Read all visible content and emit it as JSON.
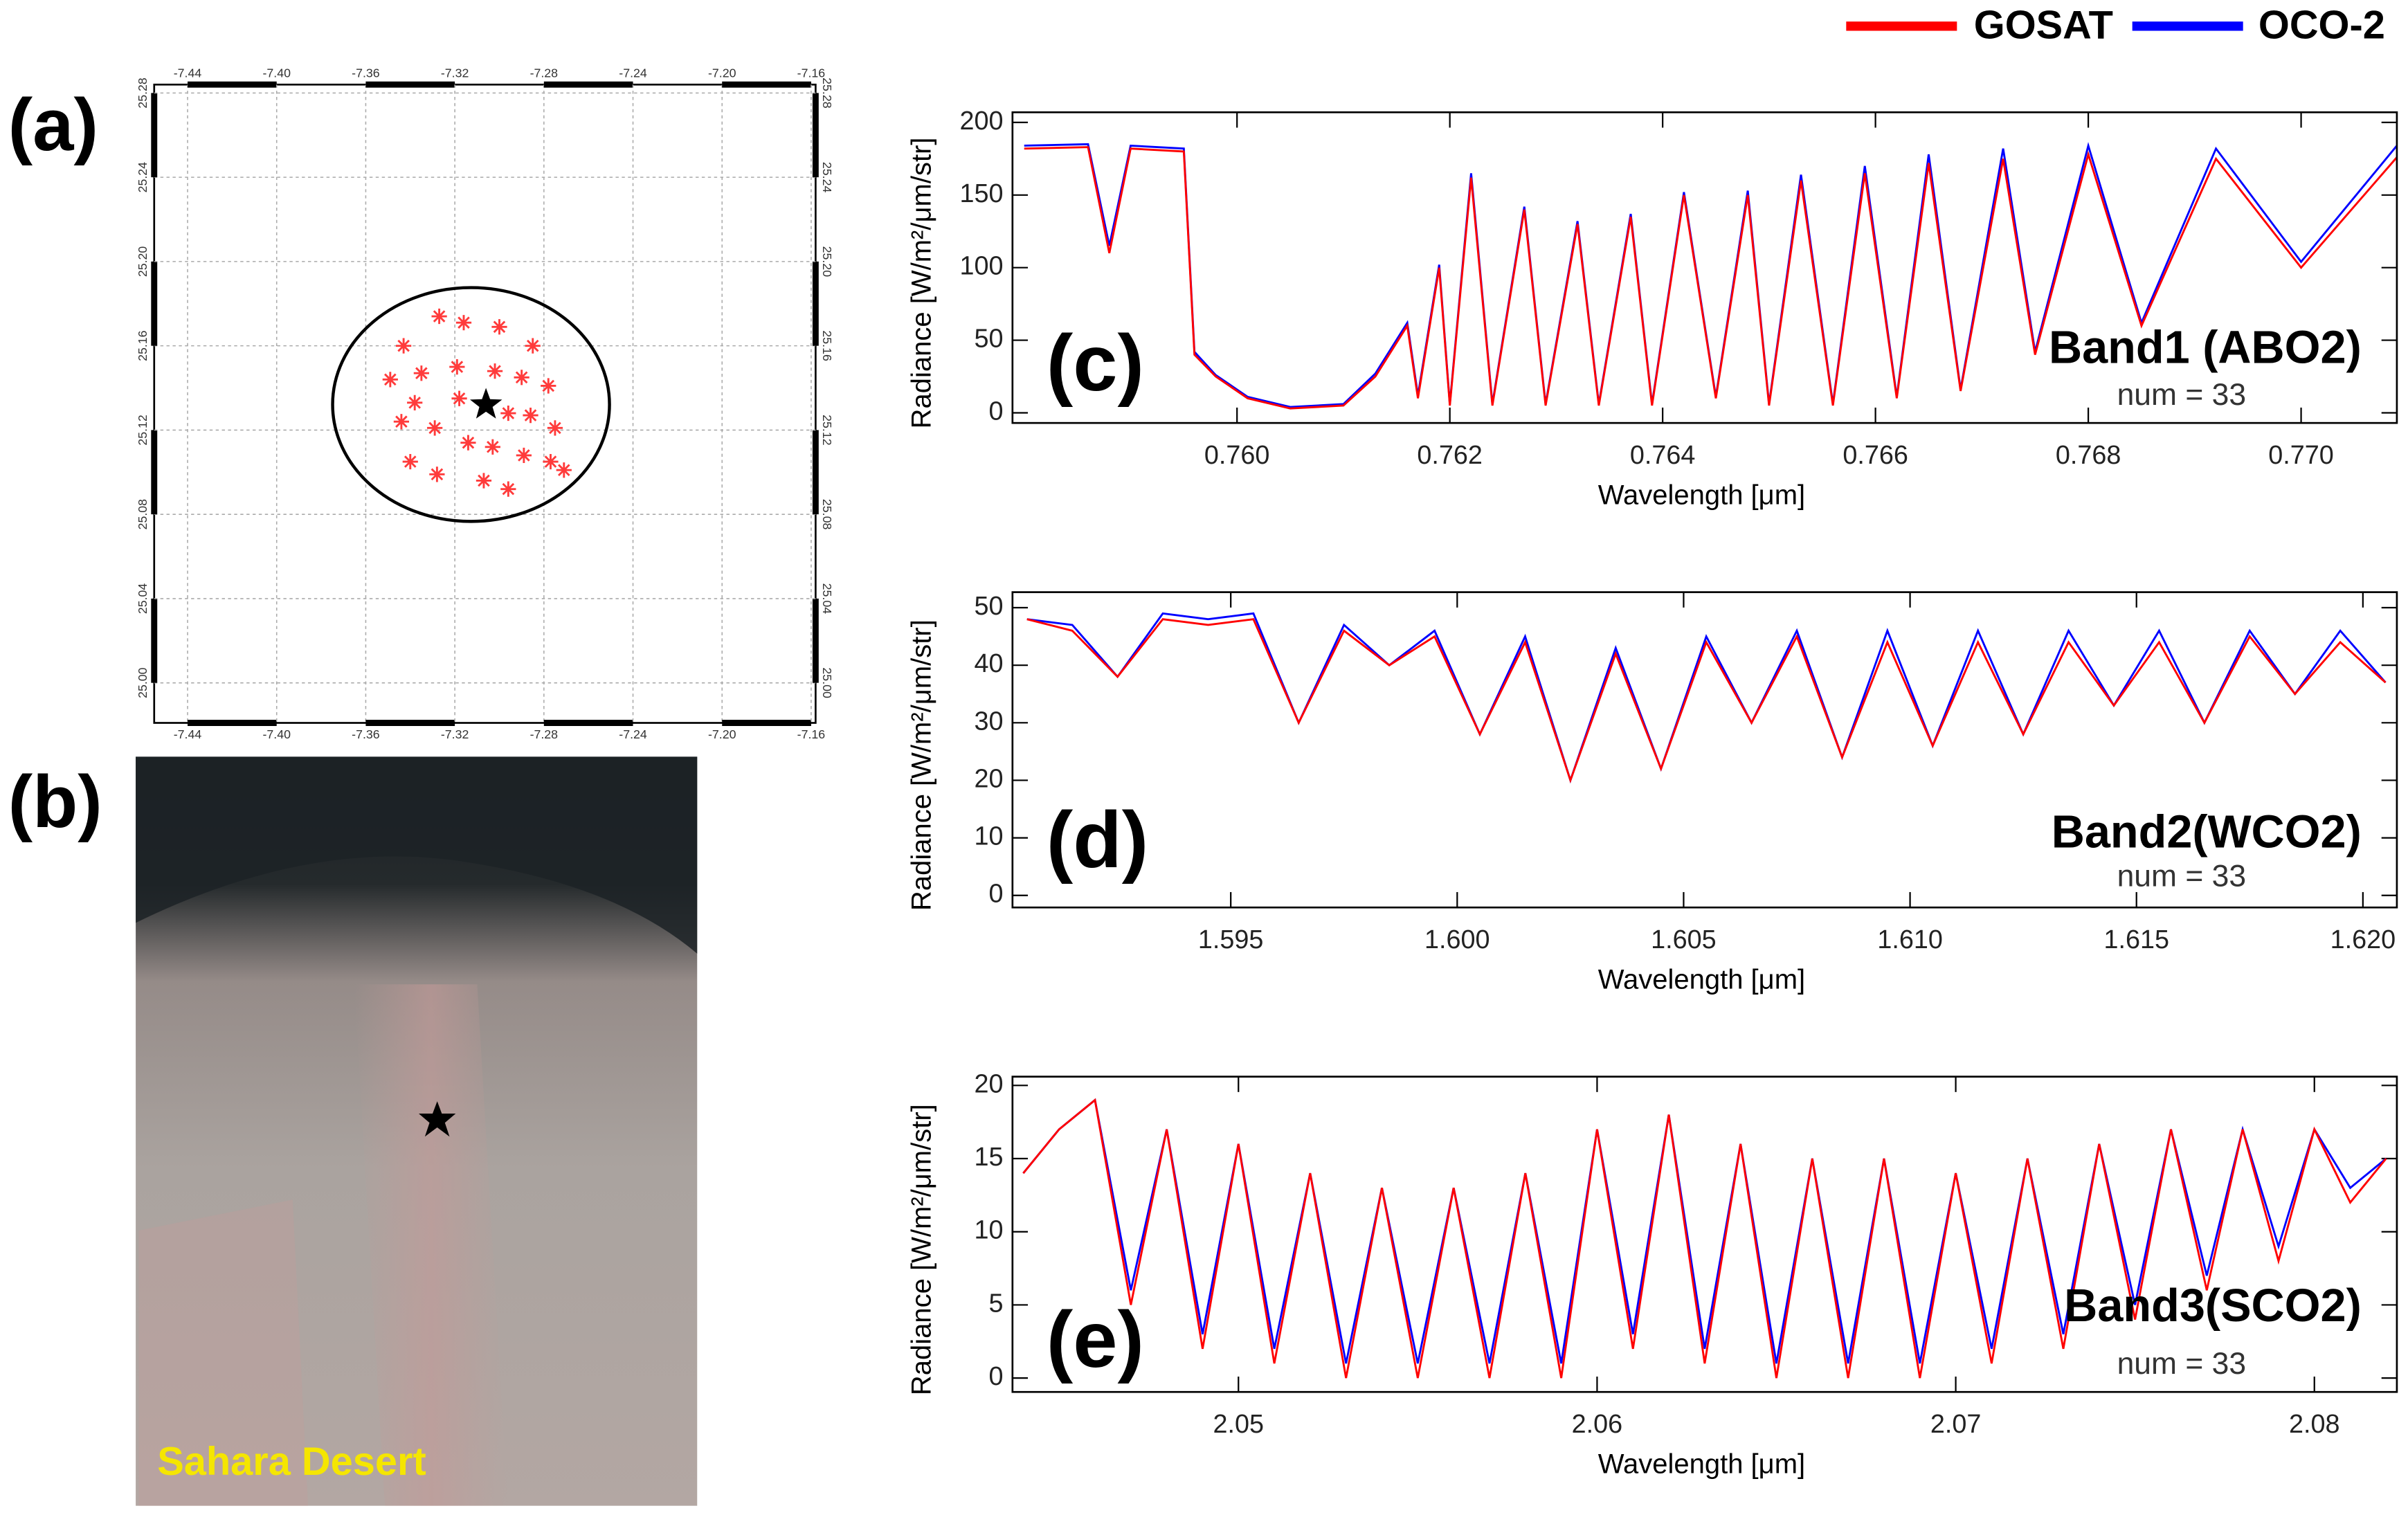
{
  "chart_data": [
    {
      "type": "scatter",
      "label": "(a)",
      "grid": true,
      "xlim": [
        -7.455,
        -7.158
      ],
      "ylim": [
        24.981,
        25.284
      ],
      "xticks": [
        -7.44,
        {
          "value": -7.4,
          "label": "-7.40"
        },
        -7.36,
        -7.32,
        -7.28,
        -7.24,
        {
          "value": -7.2,
          "label": "-7.20"
        },
        -7.16
      ],
      "yticks": [
        {
          "value": 25,
          "label": "25.00"
        },
        25.04,
        25.08,
        25.12,
        25.16,
        {
          "value": 25.2,
          "label": "25.20"
        },
        25.24,
        25.28
      ],
      "series": [
        {
          "color": "#ff3b3b",
          "marker": "asterisk",
          "x": [
            -7.343,
            -7.327,
            -7.316,
            -7.3,
            -7.285,
            -7.349,
            -7.335,
            -7.319,
            -7.302,
            -7.29,
            -7.278,
            -7.338,
            -7.318,
            -7.296,
            -7.286,
            -7.275,
            -7.344,
            -7.329,
            -7.314,
            -7.303,
            -7.289,
            -7.277,
            -7.34,
            -7.328,
            -7.307,
            -7.296,
            -7.271
          ],
          "y": [
            25.16,
            25.174,
            25.171,
            25.169,
            25.16,
            25.144,
            25.147,
            25.15,
            25.148,
            25.145,
            25.141,
            25.133,
            25.135,
            25.128,
            25.127,
            25.121,
            25.124,
            25.121,
            25.114,
            25.112,
            25.108,
            25.105,
            25.105,
            25.099,
            25.096,
            25.092,
            25.101
          ]
        },
        {
          "color": "#000000",
          "marker": "star",
          "x": [
            -7.306
          ],
          "y": [
            25.132
          ]
        }
      ]
    },
    {
      "type": "line",
      "label": "(c)",
      "annotation": "Band1 (ABO2)",
      "note": "num = 33",
      "xlabel": "Wavelength [μm]",
      "ylabel": "Radiance [W/m²/μm/str]",
      "xlim": [
        0.75789,
        0.7709
      ],
      "ylim": [
        -7,
        207
      ],
      "xticks": [
        {
          "value": 0.76,
          "label": "0.760"
        },
        0.762,
        0.764,
        0.766,
        0.768,
        {
          "value": 0.77,
          "label": "0.770"
        }
      ],
      "yticks": [
        0,
        50,
        100,
        150,
        200
      ],
      "x": [
        0.758,
        0.7586,
        0.7588,
        0.759,
        0.7595,
        0.7596,
        0.7598,
        0.7601,
        0.7605,
        0.761,
        0.7613,
        0.7616,
        0.7617,
        0.7619,
        0.762,
        0.7622,
        0.7624,
        0.7627,
        0.7629,
        0.7632,
        0.7634,
        0.7637,
        0.7639,
        0.7642,
        0.7645,
        0.7648,
        0.765,
        0.7653,
        0.7656,
        0.7659,
        0.7662,
        0.7665,
        0.7668,
        0.7672,
        0.7675,
        0.768,
        0.7685,
        0.7692,
        0.77,
        0.7709
      ],
      "series": [
        {
          "name": "GOSAT",
          "color": "#ff0000",
          "values": [
            182,
            183,
            110,
            182,
            180,
            40,
            25,
            10,
            3,
            5,
            25,
            60,
            10,
            100,
            5,
            162,
            5,
            140,
            5,
            130,
            5,
            135,
            5,
            150,
            10,
            150,
            5,
            160,
            5,
            165,
            10,
            172,
            15,
            175,
            40,
            178,
            60,
            175,
            100,
            176
          ]
        },
        {
          "name": "OCO-2",
          "color": "#0000ff",
          "values": [
            184,
            185,
            115,
            184,
            182,
            42,
            26,
            11,
            4,
            6,
            27,
            62,
            12,
            102,
            6,
            165,
            6,
            142,
            6,
            132,
            6,
            137,
            6,
            152,
            11,
            153,
            6,
            164,
            6,
            170,
            11,
            178,
            16,
            182,
            42,
            184,
            62,
            182,
            104,
            184
          ]
        }
      ]
    },
    {
      "type": "line",
      "label": "(d)",
      "annotation": "Band2(WCO2)",
      "note": "num = 33",
      "xlabel": "Wavelength [μm]",
      "ylabel": "Radiance [W/m²/μm/str]",
      "xlim": [
        1.59018,
        1.62075
      ],
      "ylim": [
        -2.1,
        52.7
      ],
      "xticks": [
        1.595,
        {
          "value": 1.6,
          "label": "1.600"
        },
        1.605,
        {
          "value": 1.61,
          "label": "1.610"
        },
        1.615,
        {
          "value": 1.62,
          "label": "1.620"
        }
      ],
      "yticks": [
        0,
        10,
        20,
        30,
        40,
        50
      ],
      "x": [
        1.5905,
        1.5915,
        1.5925,
        1.5935,
        1.5945,
        1.5955,
        1.5965,
        1.5975,
        1.5985,
        1.5995,
        1.6005,
        1.6015,
        1.6025,
        1.6035,
        1.6045,
        1.6055,
        1.6065,
        1.6075,
        1.6085,
        1.6095,
        1.6105,
        1.6115,
        1.6125,
        1.6135,
        1.6145,
        1.6155,
        1.6165,
        1.6175,
        1.6185,
        1.6195,
        1.6205
      ],
      "series": [
        {
          "color": "#ff0000",
          "values": [
            48,
            46,
            38,
            48,
            47,
            48,
            30,
            46,
            40,
            45,
            28,
            44,
            20,
            42,
            22,
            44,
            30,
            45,
            24,
            44,
            26,
            44,
            28,
            44,
            33,
            44,
            30,
            45,
            35,
            44,
            37
          ]
        },
        {
          "color": "#0000ff",
          "values": [
            48,
            47,
            38,
            49,
            48,
            49,
            30,
            47,
            40,
            46,
            28,
            45,
            20,
            43,
            22,
            45,
            30,
            46,
            24,
            46,
            26,
            46,
            28,
            46,
            33,
            46,
            30,
            46,
            35,
            46,
            37
          ]
        }
      ]
    },
    {
      "type": "line",
      "label": "(e)",
      "annotation": "Band3(SCO2)",
      "note": "num = 33",
      "xlabel": "Wavelength [μm]",
      "ylabel": "Radiance [W/m²/μm/str]",
      "xlim": [
        2.0437,
        2.0823
      ],
      "ylim": [
        -0.95,
        20.6
      ],
      "xticks": [
        2.05,
        2.06,
        2.07,
        2.08
      ],
      "yticks": [
        0,
        5,
        10,
        15,
        20
      ],
      "x": [
        2.044,
        2.045,
        2.046,
        2.047,
        2.048,
        2.049,
        2.05,
        2.051,
        2.052,
        2.053,
        2.054,
        2.055,
        2.056,
        2.057,
        2.058,
        2.059,
        2.06,
        2.061,
        2.062,
        2.063,
        2.064,
        2.065,
        2.066,
        2.067,
        2.068,
        2.069,
        2.07,
        2.071,
        2.072,
        2.073,
        2.074,
        2.075,
        2.076,
        2.077,
        2.078,
        2.079,
        2.08,
        2.081,
        2.082
      ],
      "series": [
        {
          "color": "#ff0000",
          "values": [
            14,
            17,
            19,
            5,
            17,
            2,
            16,
            1,
            14,
            0,
            13,
            0,
            13,
            0,
            14,
            0,
            17,
            2,
            18,
            1,
            16,
            0,
            15,
            0,
            15,
            0,
            14,
            1,
            15,
            2,
            16,
            4,
            17,
            6,
            17,
            8,
            17,
            12,
            15
          ]
        },
        {
          "color": "#0000ff",
          "values": [
            14,
            17,
            19,
            6,
            17,
            3,
            16,
            2,
            14,
            1,
            13,
            1,
            13,
            1,
            14,
            1,
            17,
            3,
            18,
            2,
            16,
            1,
            15,
            1,
            15,
            1,
            14,
            2,
            15,
            3,
            16,
            5,
            17,
            7,
            17,
            9,
            17,
            13,
            15
          ]
        }
      ]
    }
  ],
  "image_panel": {
    "label": "(b)",
    "caption": "Sahara Desert"
  }
}
